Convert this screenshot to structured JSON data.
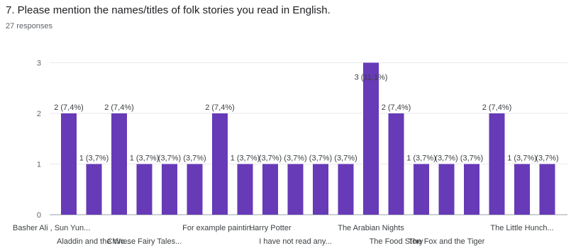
{
  "question": {
    "title": "7. Please mention the names/titles of folk stories you read in English.",
    "responses": "27 responses"
  },
  "colors": {
    "bar": "#673ab7",
    "grid": "#e8eaed",
    "text": "#3c4043"
  },
  "chart_data": {
    "type": "bar",
    "categories": [
      "Basher Ali , Sun Yun...",
      "Aladdin and the Wo...",
      "",
      "Chinese Fairy Tales...",
      "",
      "",
      "For example paintin...",
      "",
      "Harry Potter",
      "I have not read any...",
      "",
      "",
      "The Arabian Nights",
      "The Food Story",
      "",
      "The Fox and the Tiger",
      "",
      "",
      "The Little Hunch...",
      ""
    ],
    "values": [
      2,
      1,
      2,
      1,
      1,
      1,
      2,
      1,
      1,
      1,
      1,
      1,
      3,
      2,
      1,
      1,
      1,
      2,
      1,
      1
    ],
    "data_labels": [
      "2 (7,4%)",
      "1 (3,7%)",
      "2 (7,4%)",
      "1 (3,7%)",
      "(3,7%)",
      "(3,7%)",
      "2 (7,4%)",
      "1 (3,7%)",
      "(3,7%)",
      "(3,7%)",
      "(3,7%)",
      "(3,7%)",
      "3 (11,1%)",
      "2 (7,4%)",
      "1 (3,7%)",
      "(3,7%)",
      "(3,7%)",
      "2 (7,4%)",
      "1 (3,7%)",
      "(3,7%)"
    ],
    "y_ticks": [
      "0",
      "1",
      "2",
      "3"
    ],
    "ylim": [
      0,
      3
    ],
    "grid": true
  }
}
